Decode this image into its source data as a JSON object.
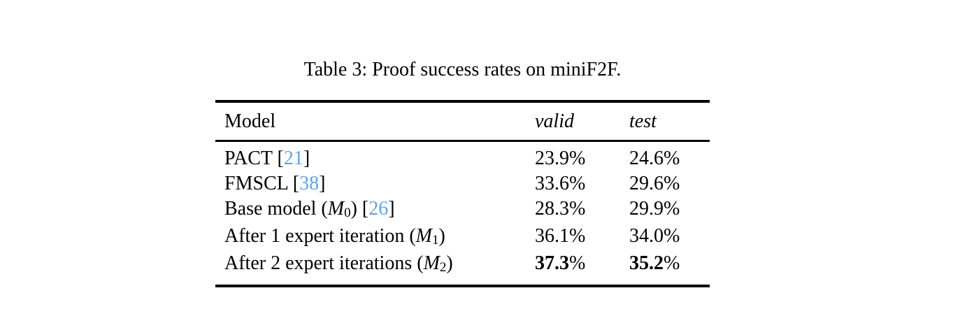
{
  "page": {
    "background_color": "#ffffff",
    "text_color": "#000000"
  },
  "caption": "Table 3: Proof success rates on miniF2F.",
  "table": {
    "citation_color": "#5aa7e8",
    "rule_color": "#000000",
    "columns": [
      {
        "label": "Model",
        "italic": false
      },
      {
        "label": "valid",
        "italic": true
      },
      {
        "label": "test",
        "italic": true
      }
    ],
    "rows": [
      {
        "model_parts": [
          {
            "text": "PACT [",
            "style": "plain"
          },
          {
            "text": "21",
            "style": "cite"
          },
          {
            "text": "]",
            "style": "plain"
          }
        ],
        "valid": {
          "num": "23.9",
          "suffix": "%"
        },
        "test": {
          "num": "24.6",
          "suffix": "%"
        },
        "bold": false
      },
      {
        "model_parts": [
          {
            "text": "FMSCL [",
            "style": "plain"
          },
          {
            "text": "38",
            "style": "cite"
          },
          {
            "text": "]",
            "style": "plain"
          }
        ],
        "valid": {
          "num": "33.6",
          "suffix": "%"
        },
        "test": {
          "num": "29.6",
          "suffix": "%"
        },
        "bold": false
      },
      {
        "model_parts": [
          {
            "text": "Base model (",
            "style": "plain"
          },
          {
            "text": "M",
            "style": "math"
          },
          {
            "text": "0",
            "style": "sub"
          },
          {
            "text": ") [",
            "style": "plain"
          },
          {
            "text": "26",
            "style": "cite"
          },
          {
            "text": "]",
            "style": "plain"
          }
        ],
        "valid": {
          "num": "28.3",
          "suffix": "%"
        },
        "test": {
          "num": "29.9",
          "suffix": "%"
        },
        "bold": false
      },
      {
        "model_parts": [
          {
            "text": "After 1 expert iteration (",
            "style": "plain"
          },
          {
            "text": "M",
            "style": "math"
          },
          {
            "text": "1",
            "style": "sub"
          },
          {
            "text": ")",
            "style": "plain"
          }
        ],
        "valid": {
          "num": "36.1",
          "suffix": "%"
        },
        "test": {
          "num": "34.0",
          "suffix": "%"
        },
        "bold": false
      },
      {
        "model_parts": [
          {
            "text": "After 2 expert iterations (",
            "style": "plain"
          },
          {
            "text": "M",
            "style": "math"
          },
          {
            "text": "2",
            "style": "sub"
          },
          {
            "text": ")",
            "style": "plain"
          }
        ],
        "valid": {
          "num": "37.3",
          "suffix": "%"
        },
        "test": {
          "num": "35.2",
          "suffix": "%"
        },
        "bold": true
      }
    ]
  },
  "chart_data": {
    "type": "table",
    "title": "Table 3: Proof success rates on miniF2F.",
    "columns": [
      "Model",
      "valid",
      "test"
    ],
    "rows": [
      [
        "PACT [21]",
        "23.9%",
        "24.6%"
      ],
      [
        "FMSCL [38]",
        "33.6%",
        "29.6%"
      ],
      [
        "Base model (M0) [26]",
        "28.3%",
        "29.9%"
      ],
      [
        "After 1 expert iteration (M1)",
        "36.1%",
        "34.0%"
      ],
      [
        "After 2 expert iterations (M2)",
        "37.3%",
        "35.2%"
      ]
    ],
    "emphasis": "last row values bold (best results)"
  }
}
